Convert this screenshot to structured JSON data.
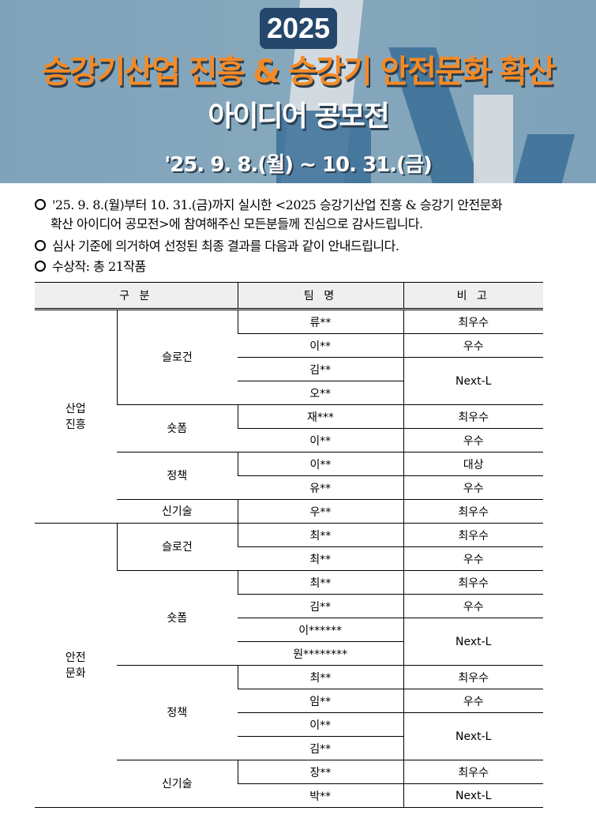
{
  "banner": {
    "year": "2025",
    "title_line1": "승강기산업 진흥 & 승강기 안전문화 확산",
    "title_line2": "아이디어 공모전",
    "period": "'25. 9. 8.(월) ~ 10. 31.(금)"
  },
  "intro": {
    "line1": "'25. 9. 8.(월)부터 10. 31.(금)까지 실시한 <2025 승강기산업 진흥 & 승강기 안전문화",
    "line1b": "확산 아이디어 공모전>에 참여해주신 모든분들께 진심으로 감사드립니다.",
    "line2": "심사 기준에 의거하여 선정된 최종 결과를 다음과 같이 안내드립니다.",
    "line3": "수상작: 총 21작품"
  },
  "table": {
    "headers": [
      "구 분",
      "팀 명",
      "비 고"
    ],
    "groups": [
      {
        "name": "산업\n진흥",
        "categories": [
          {
            "name": "슬로건",
            "rows": [
              {
                "team": "류**",
                "note": "최우수"
              },
              {
                "team": "이**",
                "note": "우수"
              },
              {
                "team": "김**",
                "note": "Next-L",
                "note_span": 2
              },
              {
                "team": "오**"
              }
            ]
          },
          {
            "name": "숏폼",
            "rows": [
              {
                "team": "재***",
                "note": "최우수"
              },
              {
                "team": "이**",
                "note": "우수"
              }
            ]
          },
          {
            "name": "정책",
            "rows": [
              {
                "team": "이**",
                "note": "대상"
              },
              {
                "team": "유**",
                "note": "우수"
              }
            ]
          },
          {
            "name": "신기술",
            "rows": [
              {
                "team": "우**",
                "note": "최우수"
              }
            ]
          }
        ]
      },
      {
        "name": "안전\n문화",
        "categories": [
          {
            "name": "슬로건",
            "rows": [
              {
                "team": "최**",
                "note": "최우수"
              },
              {
                "team": "최**",
                "note": "우수"
              }
            ]
          },
          {
            "name": "숏폼",
            "rows": [
              {
                "team": "최**",
                "note": "최우수"
              },
              {
                "team": "김**",
                "note": "우수"
              },
              {
                "team": "이******",
                "note": "Next-L",
                "note_span": 2
              },
              {
                "team": "원********"
              }
            ]
          },
          {
            "name": "정책",
            "rows": [
              {
                "team": "최**",
                "note": "최우수"
              },
              {
                "team": "임**",
                "note": "우수"
              },
              {
                "team": "이**",
                "note": "Next-L",
                "note_span": 2
              },
              {
                "team": "김**"
              }
            ]
          },
          {
            "name": "신기술",
            "rows": [
              {
                "team": "장**",
                "note": "최우수"
              },
              {
                "team": "박**",
                "note": "Next-L"
              }
            ]
          }
        ]
      }
    ]
  }
}
